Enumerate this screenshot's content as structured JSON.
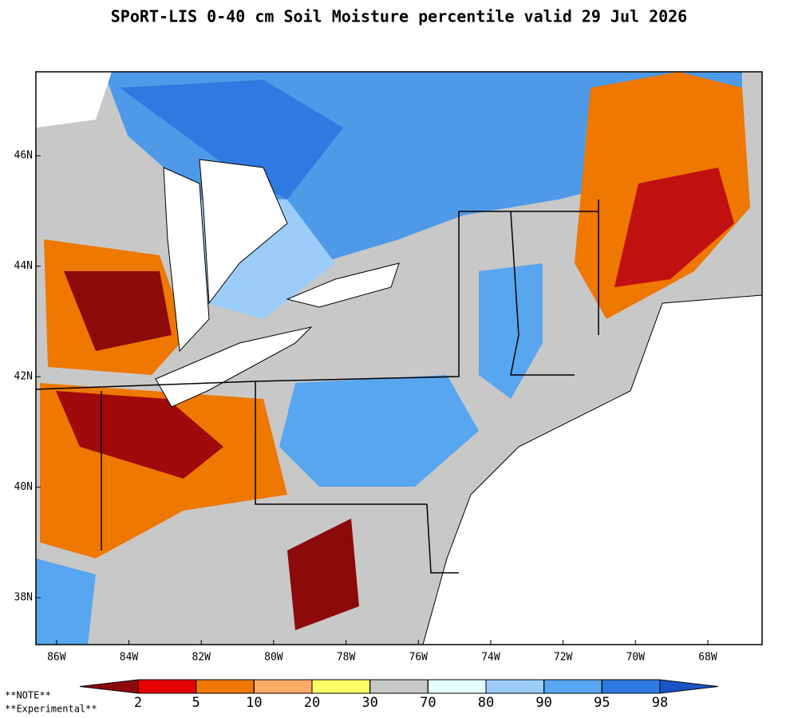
{
  "title": "SPoRT-LIS 0-40 cm Soil Moisture percentile valid 29 Jul 2026",
  "notes": [
    "**NOTE**",
    "**Experimental**"
  ],
  "map": {
    "xlim": [
      -86.57,
      -66.5
    ],
    "ylim": [
      37.15,
      47.52
    ],
    "xticks": [
      {
        "value": -86,
        "label": "86W"
      },
      {
        "value": -84,
        "label": "84W"
      },
      {
        "value": -82,
        "label": "82W"
      },
      {
        "value": -80,
        "label": "80W"
      },
      {
        "value": -78,
        "label": "78W"
      },
      {
        "value": -76,
        "label": "76W"
      },
      {
        "value": -74,
        "label": "74W"
      },
      {
        "value": -72,
        "label": "72W"
      },
      {
        "value": -70,
        "label": "70W"
      },
      {
        "value": -68,
        "label": "68W"
      }
    ],
    "yticks": [
      {
        "value": 38,
        "label": "38N"
      },
      {
        "value": 40,
        "label": "40N"
      },
      {
        "value": 42,
        "label": "42N"
      },
      {
        "value": 44,
        "label": "44N"
      },
      {
        "value": 46,
        "label": "46N"
      }
    ]
  },
  "colorbar": {
    "thresholds": [
      2,
      5,
      10,
      20,
      30,
      70,
      80,
      90,
      95,
      98
    ],
    "colors": [
      "#8c0a0a",
      "#e60000",
      "#ee7800",
      "#ffac68",
      "#ffff66",
      "#c8c8c8",
      "#e4ffff",
      "#9ccdfa",
      "#58a6ef",
      "#2e7ae0",
      "#1a55c8"
    ]
  }
}
